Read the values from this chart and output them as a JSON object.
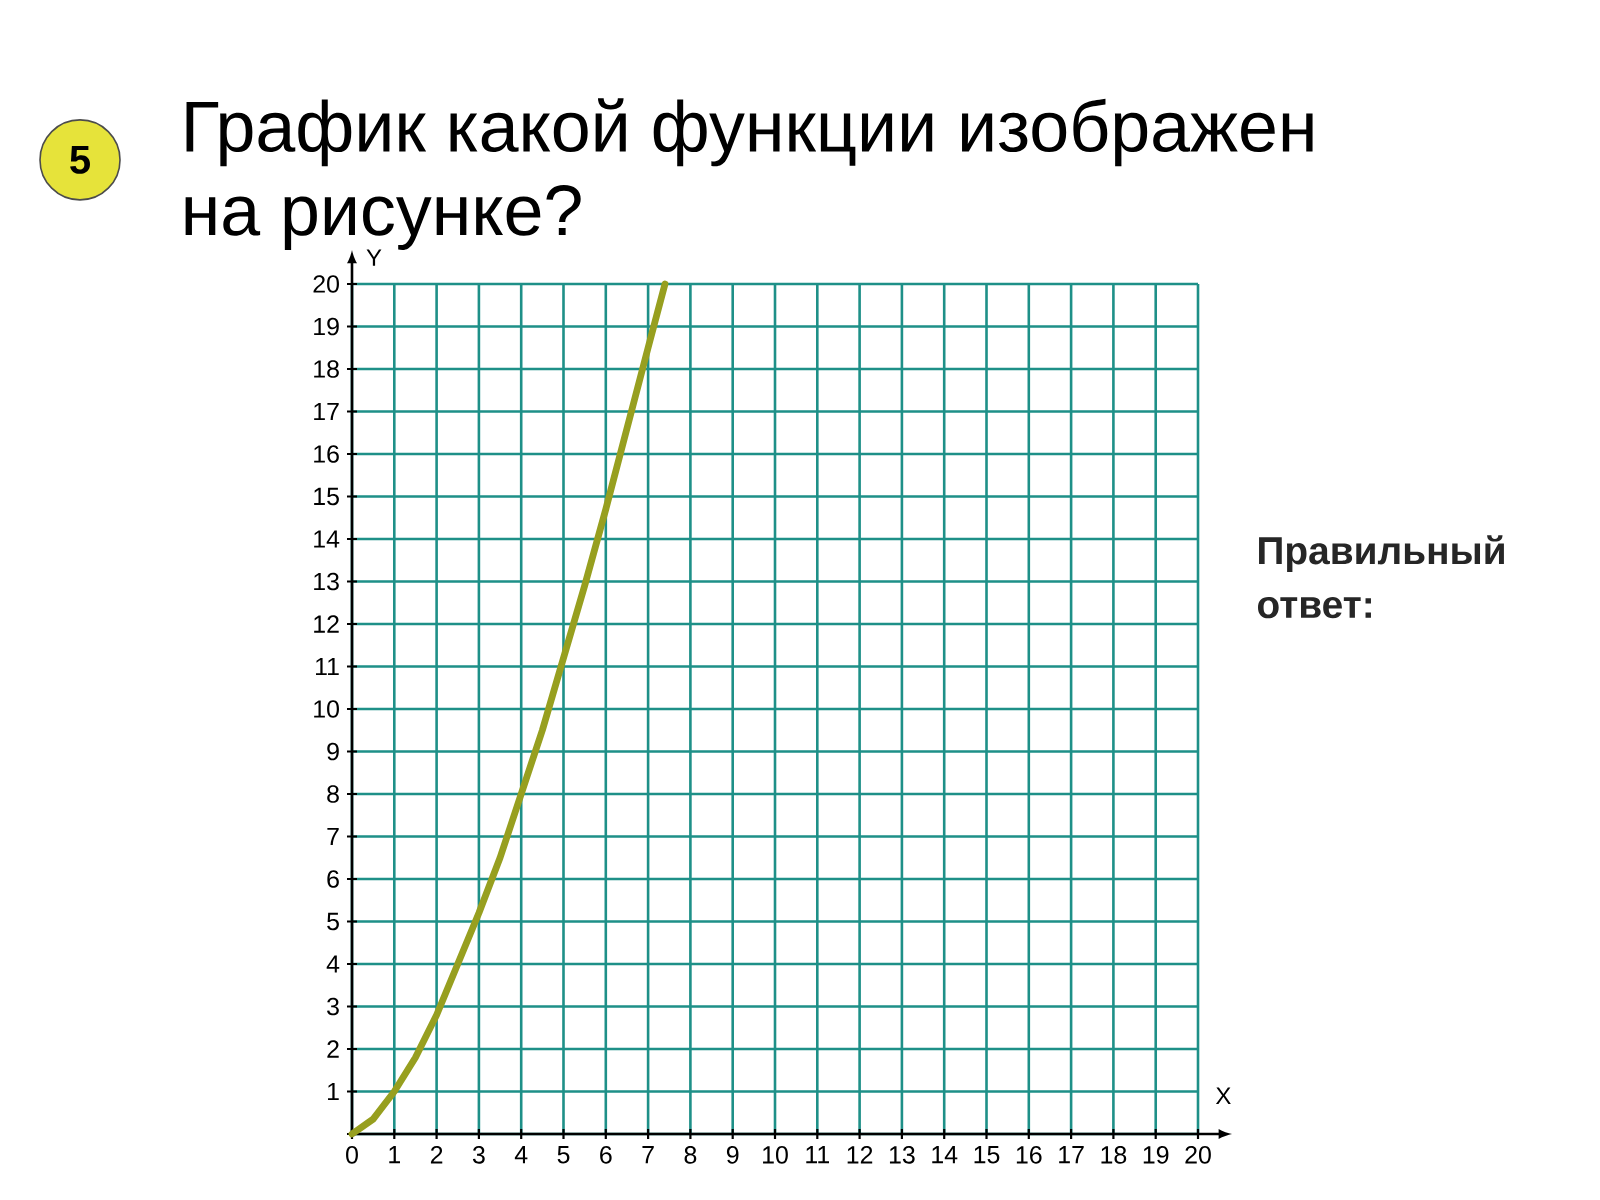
{
  "chart_data": {
    "type": "line",
    "title": "График какой функции изображен на рисунке?",
    "xlabel": "X",
    "ylabel": "Y",
    "annotations": [
      "5",
      "Правильный ответ:"
    ],
    "x": [
      0,
      0.5,
      1,
      1.5,
      2,
      2.5,
      3,
      3.5,
      4,
      4.5,
      5,
      5.5,
      6,
      6.5,
      7,
      7.4
    ],
    "series": [
      {
        "color": "#979f1f",
        "values": [
          0,
          0.35,
          1,
          1.8,
          2.8,
          4,
          5.2,
          6.5,
          8,
          9.5,
          11.2,
          12.9,
          14.7,
          16.6,
          18.5,
          20
        ]
      }
    ],
    "xlim": [
      0,
      20
    ],
    "ylim": [
      0,
      20
    ],
    "xticks": [
      0,
      1,
      2,
      3,
      4,
      5,
      6,
      7,
      8,
      9,
      10,
      11,
      12,
      13,
      14,
      15,
      16,
      17,
      18,
      19,
      20
    ],
    "yticks": [
      {
        "value": 0,
        "label": null
      },
      1,
      2,
      3,
      4,
      5,
      6,
      7,
      8,
      9,
      10,
      11,
      12,
      13,
      14,
      15,
      16,
      17,
      18,
      19,
      20
    ],
    "grid": true,
    "marker": "none",
    "line_style": "solid"
  }
}
